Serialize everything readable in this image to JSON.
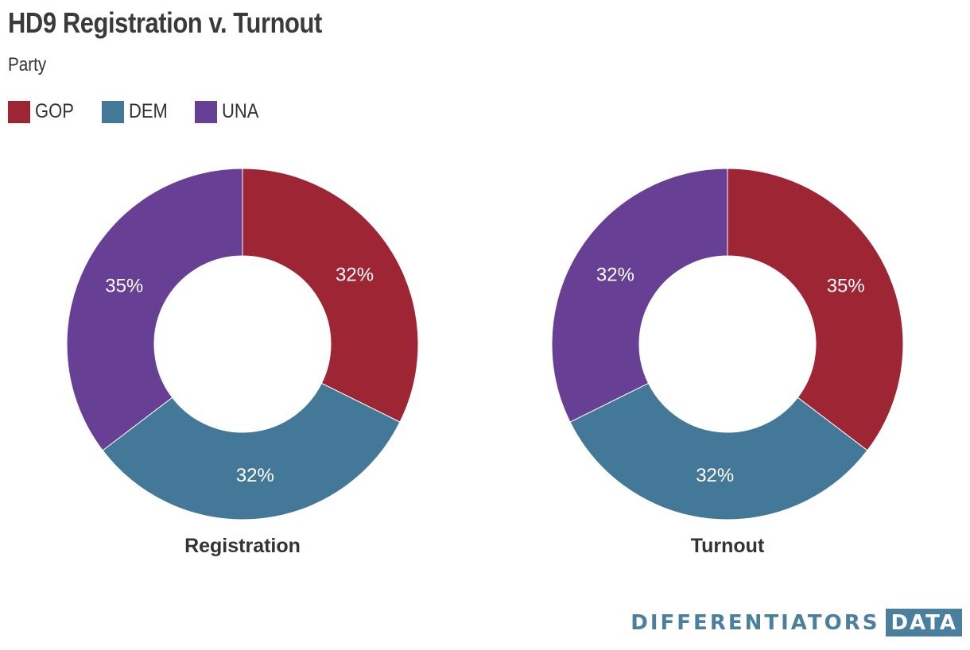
{
  "header": {
    "title": "HD9 Registration v. Turnout",
    "subtitle": "Party"
  },
  "legend": [
    {
      "label": "GOP",
      "color": "#9e2533"
    },
    {
      "label": "DEM",
      "color": "#447898"
    },
    {
      "label": "UNA",
      "color": "#673f94"
    }
  ],
  "chart_data": [
    {
      "type": "pie",
      "variant": "donut",
      "title": "Registration",
      "categories": [
        "GOP",
        "DEM",
        "UNA"
      ],
      "values": [
        32,
        32,
        35
      ],
      "labels": [
        "32%",
        "32%",
        "35%"
      ],
      "colors": [
        "#9e2533",
        "#447898",
        "#673f94"
      ]
    },
    {
      "type": "pie",
      "variant": "donut",
      "title": "Turnout",
      "categories": [
        "GOP",
        "DEM",
        "UNA"
      ],
      "values": [
        35,
        32,
        32
      ],
      "labels": [
        "35%",
        "32%",
        "32%"
      ],
      "colors": [
        "#9e2533",
        "#447898",
        "#673f94"
      ]
    }
  ],
  "branding": {
    "word": "DIFFERENTIATORS",
    "box": "DATA",
    "color": "#4a7f9e"
  }
}
